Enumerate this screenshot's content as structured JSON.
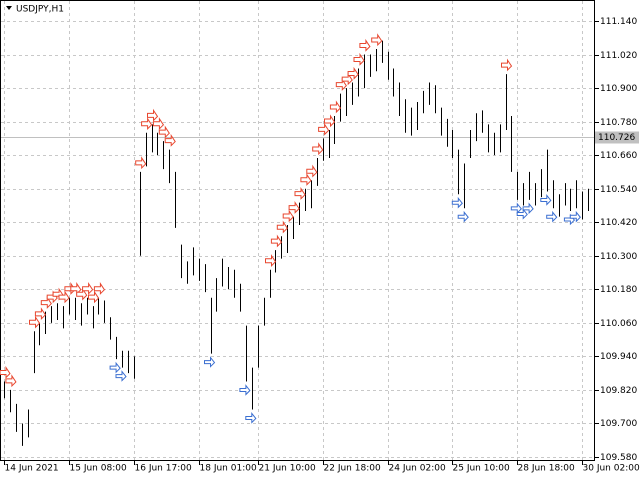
{
  "chart_data": {
    "type": "ohlc",
    "title": "USDJPY,H1",
    "xlim": [
      0,
      100
    ],
    "xticks": [
      {
        "value": 0,
        "label": "14 Jun 2021"
      },
      {
        "value": 11,
        "label": "15 Jun 08:00"
      },
      {
        "value": 22,
        "label": "16 Jun 17:00"
      },
      {
        "value": 33,
        "label": "18 Jun 01:00"
      },
      {
        "value": 43,
        "label": "21 Jun 10:00"
      },
      {
        "value": 54,
        "label": "22 Jun 18:00"
      },
      {
        "value": 65,
        "label": "24 Jun 02:00"
      },
      {
        "value": 76,
        "label": "25 Jun 10:00"
      },
      {
        "value": 87,
        "label": "28 Jun 18:00"
      },
      {
        "value": 98,
        "label": "30 Jun 02:00"
      }
    ],
    "ylim": [
      109.58,
      111.14
    ],
    "yticks": [
      {
        "value": 109.58,
        "label": "109.580"
      },
      {
        "value": 109.7,
        "label": "109.700"
      },
      {
        "value": 109.82,
        "label": "109.820"
      },
      {
        "value": 109.94,
        "label": "109.940"
      },
      {
        "value": 110.06,
        "label": "110.060"
      },
      {
        "value": 110.18,
        "label": "110.180"
      },
      {
        "value": 110.3,
        "label": "110.300"
      },
      {
        "value": 110.42,
        "label": "110.420"
      },
      {
        "value": 110.54,
        "label": "110.540"
      },
      {
        "value": 110.66,
        "label": "110.660"
      },
      {
        "value": 110.78,
        "label": "110.780"
      },
      {
        "value": 110.9,
        "label": "110.900"
      },
      {
        "value": 111.02,
        "label": "111.020"
      },
      {
        "value": 111.14,
        "label": "111.140"
      }
    ],
    "grid": true,
    "last_price": 110.726,
    "color": "#000000",
    "high": [
      109.85,
      109.82,
      109.77,
      109.7,
      109.75,
      110.03,
      110.06,
      110.1,
      110.12,
      110.13,
      110.12,
      110.15,
      110.15,
      110.13,
      110.15,
      110.12,
      110.15,
      110.14,
      110.08,
      110.01,
      109.96,
      109.96,
      109.94,
      110.6,
      110.74,
      110.77,
      110.74,
      110.71,
      110.68,
      110.6,
      110.34,
      110.28,
      110.33,
      110.29,
      110.27,
      110.15,
      110.22,
      110.29,
      110.26,
      110.25,
      110.2,
      110.05,
      109.9,
      110.05,
      110.15,
      110.25,
      110.32,
      110.37,
      110.41,
      110.44,
      110.49,
      110.54,
      110.57,
      110.65,
      110.72,
      110.75,
      110.8,
      110.88,
      110.9,
      110.92,
      110.97,
      111.02,
      111.02,
      111.04,
      111.07,
      111.03,
      110.97,
      110.92,
      110.86,
      110.83,
      110.85,
      110.89,
      110.92,
      110.91,
      110.83,
      110.79,
      110.75,
      110.68,
      110.63,
      110.75,
      110.81,
      110.82,
      110.77,
      110.74,
      110.77,
      110.95,
      110.8,
      110.6,
      110.56,
      110.6,
      110.56,
      110.61,
      110.68,
      110.57,
      110.52,
      110.56,
      110.54,
      110.57,
      110.53,
      110.54
    ],
    "low": [
      109.79,
      109.74,
      109.67,
      109.62,
      109.65,
      109.88,
      109.98,
      110.02,
      110.06,
      110.07,
      110.04,
      110.09,
      110.07,
      110.05,
      110.09,
      110.04,
      110.09,
      110.06,
      110.0,
      109.93,
      109.9,
      109.88,
      109.86,
      110.3,
      110.62,
      110.67,
      110.66,
      110.61,
      110.56,
      110.4,
      110.22,
      110.2,
      110.23,
      110.21,
      110.17,
      109.95,
      110.1,
      110.19,
      110.18,
      110.15,
      110.1,
      109.85,
      109.75,
      109.9,
      110.05,
      110.15,
      110.24,
      110.29,
      110.31,
      110.36,
      110.41,
      110.46,
      110.47,
      110.55,
      110.64,
      110.65,
      110.7,
      110.78,
      110.8,
      110.84,
      110.87,
      110.9,
      110.94,
      110.96,
      110.99,
      110.93,
      110.87,
      110.8,
      110.74,
      110.73,
      110.75,
      110.81,
      110.84,
      110.81,
      110.73,
      110.69,
      110.65,
      110.52,
      110.47,
      110.65,
      110.71,
      110.74,
      110.67,
      110.66,
      110.67,
      110.75,
      110.6,
      110.5,
      110.48,
      110.5,
      110.48,
      110.51,
      110.53,
      110.47,
      110.44,
      110.48,
      110.46,
      110.47,
      110.43,
      110.46
    ],
    "signals": [
      {
        "name": "sell",
        "color": "#e8472f",
        "bars": [
          0,
          1,
          5,
          6,
          7,
          8,
          9,
          10,
          11,
          12,
          13,
          14,
          15,
          16,
          23,
          24,
          25,
          26,
          27,
          28,
          45,
          46,
          47,
          48,
          49,
          50,
          51,
          52,
          53,
          54,
          55,
          56,
          57,
          58,
          59,
          60,
          61,
          63,
          85
        ]
      },
      {
        "name": "buy",
        "color": "#3b6fd1",
        "bars": [
          19,
          20,
          35,
          41,
          42,
          77,
          78,
          87,
          88,
          89,
          92,
          93,
          96,
          97
        ]
      }
    ]
  }
}
